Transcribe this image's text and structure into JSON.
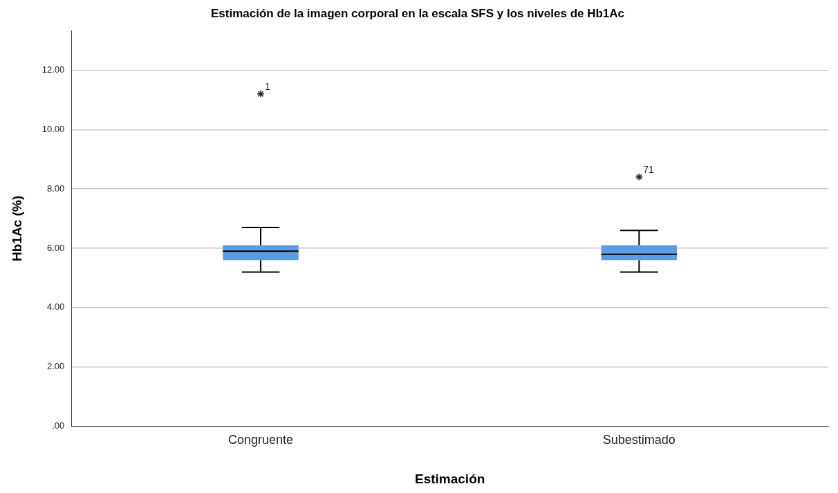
{
  "chart_data": {
    "type": "box",
    "title": "Estimación de la imagen corporal en la escala SFS y los niveles de Hb1Ac",
    "xlabel": "Estimación",
    "ylabel": "Hb1Ac (%)",
    "categories": [
      "Congruente",
      "Subestimado"
    ],
    "color": "#5b9be0",
    "boxes": [
      {
        "low": 5.2,
        "q1": 5.6,
        "median": 5.9,
        "q3": 6.1,
        "high": 6.7,
        "outliers": [
          11.2
        ]
      },
      {
        "low": 5.2,
        "q1": 5.6,
        "median": 5.8,
        "q3": 6.1,
        "high": 6.6,
        "outliers": [
          8.4
        ]
      }
    ],
    "marker": "star",
    "annotations": [
      "1",
      "71"
    ],
    "ylim": [
      0,
      13.33
    ],
    "yticks": [
      {
        "value": 0,
        "label": ".00"
      },
      {
        "value": 2,
        "label": "2.00"
      },
      {
        "value": 4,
        "label": "4.00"
      },
      {
        "value": 6,
        "label": "6.00"
      },
      {
        "value": 8,
        "label": "8.00"
      },
      {
        "value": 10,
        "label": "10.00"
      },
      {
        "value": 12,
        "label": "12.00"
      }
    ],
    "grid": "y",
    "legend": false
  }
}
